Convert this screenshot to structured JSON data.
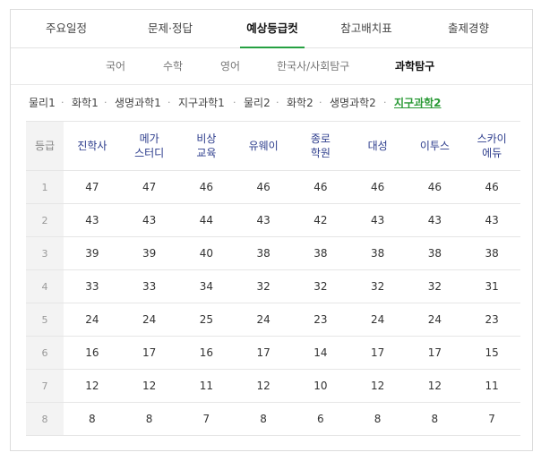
{
  "tabs": [
    {
      "label": "주요일정"
    },
    {
      "label": "문제·정답"
    },
    {
      "label": "예상등급컷",
      "active": true
    },
    {
      "label": "참고배치표"
    },
    {
      "label": "출제경향"
    }
  ],
  "subnav": [
    {
      "label": "국어"
    },
    {
      "label": "수학"
    },
    {
      "label": "영어"
    },
    {
      "label": "한국사/사회탐구"
    },
    {
      "label": "과학탐구",
      "active": true
    }
  ],
  "subjects": [
    {
      "label": "물리1"
    },
    {
      "label": "화학1"
    },
    {
      "label": "생명과학1"
    },
    {
      "label": "지구과학1"
    },
    {
      "label": "물리2"
    },
    {
      "label": "화학2"
    },
    {
      "label": "생명과학2"
    },
    {
      "label": "지구과학2",
      "active": true
    }
  ],
  "separator": "·",
  "table": {
    "grade_header": "등급",
    "columns": [
      [
        "진학사"
      ],
      [
        "메가",
        "스터디"
      ],
      [
        "비상",
        "교육"
      ],
      [
        "유웨이"
      ],
      [
        "종로",
        "학원"
      ],
      [
        "대성"
      ],
      [
        "이투스"
      ],
      [
        "스카이",
        "에듀"
      ]
    ],
    "rows": [
      {
        "grade": "1",
        "values": [
          "47",
          "47",
          "46",
          "46",
          "46",
          "46",
          "46",
          "46"
        ]
      },
      {
        "grade": "2",
        "values": [
          "43",
          "43",
          "44",
          "43",
          "42",
          "43",
          "43",
          "43"
        ]
      },
      {
        "grade": "3",
        "values": [
          "39",
          "39",
          "40",
          "38",
          "38",
          "38",
          "38",
          "38"
        ]
      },
      {
        "grade": "4",
        "values": [
          "33",
          "33",
          "34",
          "32",
          "32",
          "32",
          "32",
          "31"
        ]
      },
      {
        "grade": "5",
        "values": [
          "24",
          "24",
          "25",
          "24",
          "23",
          "24",
          "24",
          "23"
        ]
      },
      {
        "grade": "6",
        "values": [
          "16",
          "17",
          "16",
          "17",
          "14",
          "17",
          "17",
          "15"
        ]
      },
      {
        "grade": "7",
        "values": [
          "12",
          "12",
          "11",
          "12",
          "10",
          "12",
          "12",
          "11"
        ]
      },
      {
        "grade": "8",
        "values": [
          "8",
          "8",
          "7",
          "8",
          "6",
          "8",
          "8",
          "7"
        ]
      }
    ]
  },
  "colors": {
    "accent": "#25a041",
    "header_text": "#2c3c8c",
    "active_subject": "#2a9a36"
  }
}
